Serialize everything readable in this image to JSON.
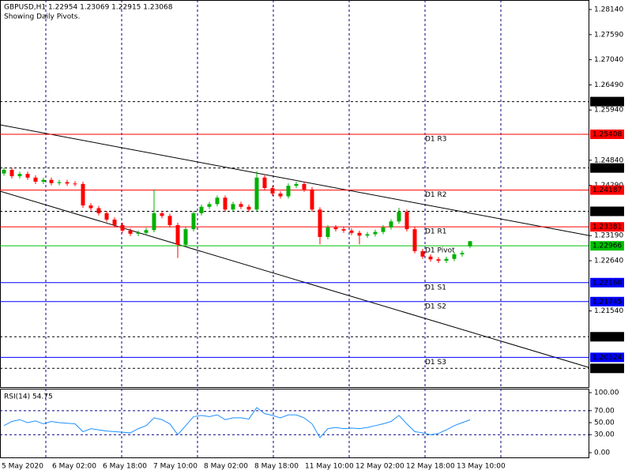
{
  "chart_data": {
    "type": "candlestick",
    "title": "GBPUSD,H1  1.22954 1.23069 1.22915 1.23068",
    "subtitle": "Showing Daily Pivots.",
    "up_color": "#00b000",
    "down_color": "#ff0000",
    "ylim": [
      1.19873,
      1.28348
    ],
    "yticks": [
      {
        "value": 1.2814,
        "label": "1.28140"
      },
      {
        "value": 1.2759,
        "label": "1.27590"
      },
      {
        "value": 1.2704,
        "label": "1.27040"
      },
      {
        "value": 1.2649,
        "label": "1.26490"
      },
      {
        "value": 1.2594,
        "label": "1.25940"
      },
      {
        "value": 1.2484,
        "label": "1.24840"
      },
      {
        "value": 1.2429,
        "label": "1.24290"
      },
      {
        "value": 1.2319,
        "label": "1.23190"
      },
      {
        "value": 1.2264,
        "label": "1.22640"
      },
      {
        "value": 1.2154,
        "label": "1.21540"
      }
    ],
    "time_labels": [
      "5 May 2020",
      "6 May 02:00",
      "6 May 18:00",
      "7 May 10:00",
      "8 May 02:00",
      "8 May 18:00",
      "11 May 10:00",
      "12 May 02:00",
      "12 May 18:00",
      "13 May 10:00"
    ],
    "levels": [
      {
        "value": 1.26124,
        "color": "#000000",
        "dashed": true
      },
      {
        "value": 1.25408,
        "name": "D1 R3",
        "color": "#ff0000",
        "dashed": false
      },
      {
        "value": 1.2467,
        "value_label": "1.24670",
        "color": "#000000",
        "dashed": true
      },
      {
        "value": 1.24187,
        "name": "D1 R2",
        "color": "#ff0000",
        "dashed": false
      },
      {
        "value": 1.23721,
        "color": "#000000",
        "dashed": true
      },
      {
        "value": 1.23381,
        "name": "D1 R1",
        "color": "#ff0000",
        "dashed": false
      },
      {
        "value": 1.22966,
        "name": "D1 Pivot",
        "color": "#00c000",
        "dashed": false
      },
      {
        "value": 1.2216,
        "value_label": "1.22160",
        "name": "D1 S1",
        "color": "#0000ff",
        "dashed": false
      },
      {
        "value": 1.21745,
        "name": "D1 S2",
        "color": "#0000ff",
        "dashed": false
      },
      {
        "value": 1.20975,
        "color": "#000000",
        "dashed": true
      },
      {
        "value": 1.20524,
        "name": "D1 S3",
        "color": "#0000ff",
        "dashed": false
      },
      {
        "value": 1.20283,
        "color": "#000000",
        "dashed": true
      }
    ],
    "candles": [
      [
        1.2455,
        1.2468,
        1.245,
        1.2463
      ],
      [
        1.2463,
        1.2468,
        1.2444,
        1.2449
      ],
      [
        1.2449,
        1.2459,
        1.2444,
        1.2454
      ],
      [
        1.2454,
        1.2459,
        1.2441,
        1.2446
      ],
      [
        1.2446,
        1.2451,
        1.2432,
        1.2437
      ],
      [
        1.2437,
        1.2446,
        1.2432,
        1.2441
      ],
      [
        1.2441,
        1.2446,
        1.2429,
        1.2434
      ],
      [
        1.2434,
        1.2441,
        1.2429,
        1.2436
      ],
      [
        1.2436,
        1.2441,
        1.2428,
        1.2433
      ],
      [
        1.2433,
        1.2438,
        1.2427,
        1.2432
      ],
      [
        1.2432,
        1.2437,
        1.238,
        1.2385
      ],
      [
        1.2385,
        1.239,
        1.2374,
        1.2379
      ],
      [
        1.2379,
        1.2384,
        1.2363,
        1.2368
      ],
      [
        1.2368,
        1.2373,
        1.2349,
        1.2354
      ],
      [
        1.2354,
        1.2359,
        1.2337,
        1.2342
      ],
      [
        1.2342,
        1.2347,
        1.2325,
        1.233
      ],
      [
        1.233,
        1.2335,
        1.2318,
        1.2323
      ],
      [
        1.2323,
        1.233,
        1.2318,
        1.2325
      ],
      [
        1.2325,
        1.2336,
        1.232,
        1.2331
      ],
      [
        1.2331,
        1.242,
        1.2326,
        1.2368
      ],
      [
        1.2368,
        1.2373,
        1.2357,
        1.2362
      ],
      [
        1.2362,
        1.2367,
        1.2337,
        1.2342
      ],
      [
        1.2342,
        1.2347,
        1.227,
        1.2299
      ],
      [
        1.2299,
        1.2338,
        1.2294,
        1.2333
      ],
      [
        1.2333,
        1.2373,
        1.2328,
        1.2368
      ],
      [
        1.2368,
        1.2387,
        1.2363,
        1.2382
      ],
      [
        1.2382,
        1.2393,
        1.2377,
        1.2388
      ],
      [
        1.2388,
        1.2407,
        1.2383,
        1.2402
      ],
      [
        1.2402,
        1.2407,
        1.2371,
        1.2376
      ],
      [
        1.2376,
        1.2393,
        1.2371,
        1.2388
      ],
      [
        1.2388,
        1.2393,
        1.2377,
        1.2382
      ],
      [
        1.2382,
        1.2387,
        1.2371,
        1.2376
      ],
      [
        1.2376,
        1.246,
        1.2371,
        1.2446
      ],
      [
        1.2446,
        1.2451,
        1.2418,
        1.2423
      ],
      [
        1.2423,
        1.2428,
        1.2406,
        1.2411
      ],
      [
        1.2411,
        1.2416,
        1.24,
        1.2405
      ],
      [
        1.2405,
        1.2433,
        1.24,
        1.2428
      ],
      [
        1.2428,
        1.2437,
        1.2423,
        1.2432
      ],
      [
        1.2432,
        1.2437,
        1.2415,
        1.242
      ],
      [
        1.242,
        1.2425,
        1.2371,
        1.2376
      ],
      [
        1.2376,
        1.2381,
        1.23,
        1.2316
      ],
      [
        1.2316,
        1.2342,
        1.2311,
        1.2337
      ],
      [
        1.2337,
        1.2342,
        1.2328,
        1.2333
      ],
      [
        1.2333,
        1.2338,
        1.2325,
        1.233
      ],
      [
        1.233,
        1.2335,
        1.232,
        1.2325
      ],
      [
        1.2325,
        1.233,
        1.23,
        1.2319
      ],
      [
        1.2319,
        1.2327,
        1.2314,
        1.2322
      ],
      [
        1.2322,
        1.2332,
        1.2317,
        1.2327
      ],
      [
        1.2327,
        1.2342,
        1.2322,
        1.2337
      ],
      [
        1.2337,
        1.2355,
        1.2332,
        1.235
      ],
      [
        1.235,
        1.238,
        1.2345,
        1.2371
      ],
      [
        1.2371,
        1.2376,
        1.2328,
        1.2333
      ],
      [
        1.2333,
        1.2338,
        1.228,
        1.2285
      ],
      [
        1.2285,
        1.229,
        1.2268,
        1.2273
      ],
      [
        1.2273,
        1.2278,
        1.2262,
        1.2267
      ],
      [
        1.2267,
        1.2272,
        1.2259,
        1.2264
      ],
      [
        1.2264,
        1.2273,
        1.2259,
        1.2268
      ],
      [
        1.2268,
        1.2283,
        1.2263,
        1.2278
      ],
      [
        1.2278,
        1.2286,
        1.2273,
        1.2281
      ],
      [
        1.22954,
        1.23069,
        1.22915,
        1.23068
      ]
    ],
    "rsi": {
      "title": "RSI(14) 54.75",
      "color": "#1e90ff",
      "ylim": [
        -9.2,
        106.6
      ],
      "yticks": [
        {
          "value": 100,
          "label": "100.00"
        },
        {
          "value": 70,
          "label": "70.00"
        },
        {
          "value": 50,
          "label": "50.00"
        },
        {
          "value": 30,
          "label": "30.00"
        },
        {
          "value": 0,
          "label": "0.00"
        }
      ],
      "levels": [
        70,
        30
      ],
      "values": [
        45,
        52,
        55,
        50,
        53,
        48,
        52,
        50,
        49,
        48,
        35,
        40,
        38,
        36,
        35,
        34,
        33,
        40,
        45,
        58,
        55,
        48,
        30,
        45,
        60,
        62,
        60,
        63,
        55,
        58,
        58,
        56,
        75,
        65,
        62,
        58,
        63,
        63,
        58,
        48,
        25,
        40,
        42,
        40,
        41,
        40,
        42,
        45,
        48,
        52,
        62,
        48,
        35,
        33,
        30,
        32,
        38,
        45,
        50,
        54.75
      ]
    }
  }
}
